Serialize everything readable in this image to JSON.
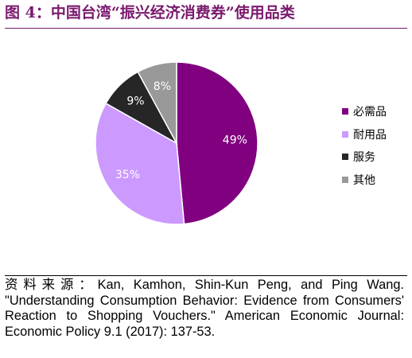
{
  "title": "图 4：中国台湾“振兴经济消费券”使用品类",
  "chart_data": {
    "type": "pie",
    "title": "",
    "categories": [
      "必需品",
      "耐用品",
      "服务",
      "其他"
    ],
    "values": [
      49,
      35,
      9,
      8
    ],
    "value_labels": [
      "49%",
      "35%",
      "9%",
      "8%"
    ],
    "colors": [
      "#800080",
      "#cc99ff",
      "#262626",
      "#999999"
    ],
    "label_colors": [
      "#ffffff",
      "#ffffff",
      "#ffffff",
      "#ffffff"
    ],
    "legend_position": "right"
  },
  "source": "资料来源：Kan, Kamhon, Shin-Kun Peng, and Ping Wang. \"Understanding Consumption Behavior: Evidence from Consumers' Reaction to Shopping Vouchers.\" American Economic Journal: Economic Policy 9.1 (2017): 137-53."
}
